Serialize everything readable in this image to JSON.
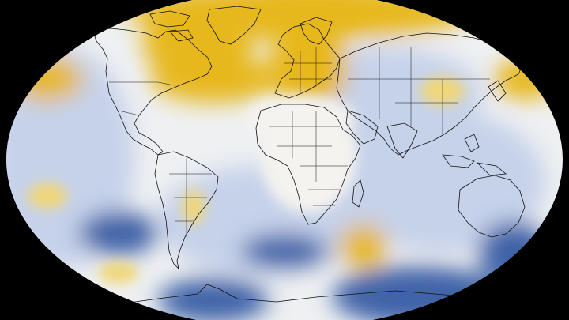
{
  "map": {
    "projection": "robinson",
    "background_color": "#000000",
    "base_color": "#eef0f2",
    "colors": {
      "warm_strong": "#e7b81f",
      "warm_light": "#f1d777",
      "neutral": "#f4f3ef",
      "cool_light": "#c6d2ea",
      "cool_strong": "#3f63a8"
    },
    "coastline_color": "#111111",
    "anomaly_regions": [
      {
        "name": "arctic-siberia-warm",
        "kind": "warm_strong"
      },
      {
        "name": "greenland-warm",
        "kind": "warm_strong"
      },
      {
        "name": "north-atlantic-warm",
        "kind": "warm_strong"
      },
      {
        "name": "europe-warm",
        "kind": "warm_strong"
      },
      {
        "name": "north-pacific-east-warm",
        "kind": "warm_strong"
      },
      {
        "name": "north-pacific-west-warm",
        "kind": "warm_light"
      },
      {
        "name": "central-asia-cool",
        "kind": "cool_light"
      },
      {
        "name": "eastern-pacific-cool",
        "kind": "cool_light"
      },
      {
        "name": "south-pacific-cool",
        "kind": "cool_strong"
      },
      {
        "name": "south-atlantic-cool",
        "kind": "cool_light"
      },
      {
        "name": "south-indian-warm",
        "kind": "warm_strong"
      },
      {
        "name": "antarctic-cool",
        "kind": "cool_strong"
      },
      {
        "name": "south-pacific-warm-spot",
        "kind": "warm_light"
      },
      {
        "name": "south-america-warm-spot",
        "kind": "warm_light"
      }
    ]
  }
}
